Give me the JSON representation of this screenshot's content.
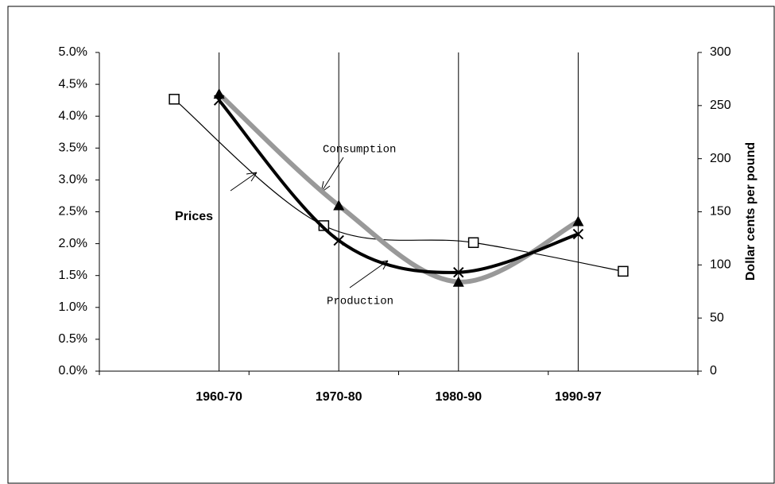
{
  "chart_data": {
    "type": "line",
    "categories": [
      "1960-70",
      "1970-80",
      "1980-90",
      "1990-97"
    ],
    "series": [
      {
        "name": "Production",
        "color": "#000000",
        "marker": "x",
        "values": [
          4.25,
          2.05,
          1.55,
          2.15
        ]
      },
      {
        "name": "Consumption",
        "color": "#999999",
        "marker": "triangle",
        "values": [
          4.35,
          2.6,
          1.4,
          2.35
        ]
      },
      {
        "name": "Prices",
        "color": "#000000",
        "marker": "square",
        "axis": "y2",
        "values": [
          256,
          137,
          121,
          94
        ]
      }
    ],
    "ylim": [
      0,
      5
    ],
    "yticks": [
      {
        "value": 0,
        "label": "0.0%"
      },
      {
        "value": 0.5,
        "label": "0.5%"
      },
      {
        "value": 1,
        "label": "1.0%"
      },
      {
        "value": 1.5,
        "label": "1.5%"
      },
      {
        "value": 2,
        "label": "2.0%"
      },
      {
        "value": 2.5,
        "label": "2.5%"
      },
      {
        "value": 3,
        "label": "3.0%"
      },
      {
        "value": 3.5,
        "label": "3.5%"
      },
      {
        "value": 4,
        "label": "4.0%"
      },
      {
        "value": 4.5,
        "label": "4.5%"
      },
      {
        "value": 5,
        "label": "5.0%"
      }
    ],
    "y2lim": [
      0,
      300
    ],
    "y2ticks": [
      0,
      50,
      100,
      150,
      200,
      250,
      300
    ],
    "y2label": "Dollar cents per pound",
    "grid": true
  }
}
